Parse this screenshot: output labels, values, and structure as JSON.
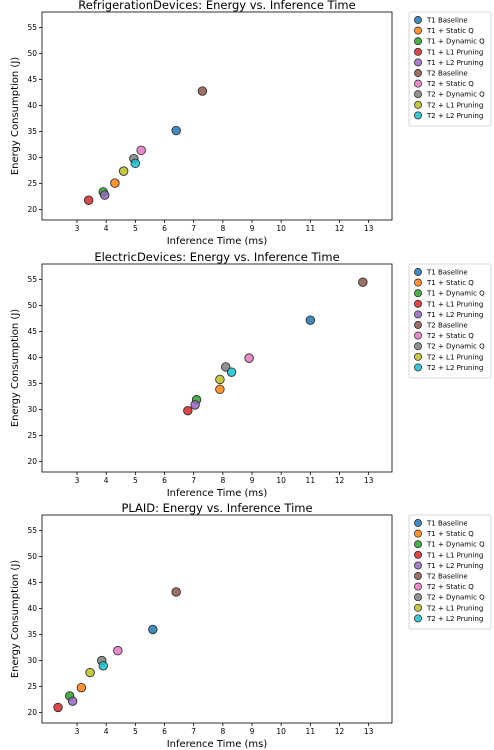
{
  "series_colors": {
    "T1 Baseline": "#1f77b4",
    "T1 + Static Q": "#ff7f0e",
    "T1 + Dynamic Q": "#2ca02c",
    "T1 + L1 Pruning": "#d62728",
    "T1 + L2 Pruning": "#9467bd",
    "T2 Baseline": "#8c564b",
    "T2 + Static Q": "#e377c2",
    "T2 + Dynamic Q": "#7f7f7f",
    "T2 + L1 Pruning": "#bcbd22",
    "T2 + L2 Pruning": "#17becf"
  },
  "chart_data": [
    {
      "type": "scatter",
      "title": "RefrigerationDevices: Energy vs. Inference Time",
      "xlabel": "Inference Time (ms)",
      "ylabel": "Energy Consumption (J)",
      "xlim": [
        1.8,
        13.8
      ],
      "ylim": [
        18,
        58
      ],
      "xticks": [
        3,
        4,
        5,
        6,
        7,
        8,
        9,
        10,
        11,
        12,
        13
      ],
      "yticks": [
        20,
        25,
        30,
        35,
        40,
        45,
        50,
        55
      ],
      "grid": false,
      "legend": "outside-right",
      "series": [
        {
          "name": "T1 Baseline",
          "x": 6.4,
          "y": 35.2
        },
        {
          "name": "T1 + Static Q",
          "x": 4.3,
          "y": 25.1
        },
        {
          "name": "T1 + Dynamic Q",
          "x": 3.9,
          "y": 23.4
        },
        {
          "name": "T1 + L1 Pruning",
          "x": 3.4,
          "y": 21.8
        },
        {
          "name": "T1 + L2 Pruning",
          "x": 3.95,
          "y": 22.8
        },
        {
          "name": "T2 Baseline",
          "x": 7.3,
          "y": 42.8
        },
        {
          "name": "T2 + Static Q",
          "x": 5.2,
          "y": 31.4
        },
        {
          "name": "T2 + Dynamic Q",
          "x": 4.95,
          "y": 29.8
        },
        {
          "name": "T2 + L1 Pruning",
          "x": 4.6,
          "y": 27.4
        },
        {
          "name": "T2 + L2 Pruning",
          "x": 5.0,
          "y": 28.9
        }
      ]
    },
    {
      "type": "scatter",
      "title": "ElectricDevices: Energy vs. Inference Time",
      "xlabel": "Inference Time (ms)",
      "ylabel": "Energy Consumption (J)",
      "xlim": [
        1.8,
        13.8
      ],
      "ylim": [
        18,
        58
      ],
      "xticks": [
        3,
        4,
        5,
        6,
        7,
        8,
        9,
        10,
        11,
        12,
        13
      ],
      "yticks": [
        20,
        25,
        30,
        35,
        40,
        45,
        50,
        55
      ],
      "grid": false,
      "legend": "outside-right",
      "series": [
        {
          "name": "T1 Baseline",
          "x": 11.0,
          "y": 47.2
        },
        {
          "name": "T1 + Static Q",
          "x": 7.9,
          "y": 33.9
        },
        {
          "name": "T1 + Dynamic Q",
          "x": 7.1,
          "y": 31.9
        },
        {
          "name": "T1 + L1 Pruning",
          "x": 6.8,
          "y": 29.8
        },
        {
          "name": "T1 + L2 Pruning",
          "x": 7.05,
          "y": 30.9
        },
        {
          "name": "T2 Baseline",
          "x": 12.8,
          "y": 54.5
        },
        {
          "name": "T2 + Static Q",
          "x": 8.9,
          "y": 39.9
        },
        {
          "name": "T2 + Dynamic Q",
          "x": 8.1,
          "y": 38.2
        },
        {
          "name": "T2 + L1 Pruning",
          "x": 7.9,
          "y": 35.8
        },
        {
          "name": "T2 + L2 Pruning",
          "x": 8.3,
          "y": 37.2
        }
      ]
    },
    {
      "type": "scatter",
      "title": "PLAID: Energy vs. Inference Time",
      "xlabel": "Inference Time (ms)",
      "ylabel": "Energy Consumption (J)",
      "xlim": [
        1.8,
        13.8
      ],
      "ylim": [
        18,
        58
      ],
      "xticks": [
        3,
        4,
        5,
        6,
        7,
        8,
        9,
        10,
        11,
        12,
        13
      ],
      "yticks": [
        20,
        25,
        30,
        35,
        40,
        45,
        50,
        55
      ],
      "grid": false,
      "legend": "outside-right",
      "series": [
        {
          "name": "T1 Baseline",
          "x": 5.6,
          "y": 36.0
        },
        {
          "name": "T1 + Static Q",
          "x": 3.15,
          "y": 24.8
        },
        {
          "name": "T1 + Dynamic Q",
          "x": 2.75,
          "y": 23.2
        },
        {
          "name": "T1 + L1 Pruning",
          "x": 2.35,
          "y": 21.0
        },
        {
          "name": "T1 + L2 Pruning",
          "x": 2.85,
          "y": 22.2
        },
        {
          "name": "T2 Baseline",
          "x": 6.4,
          "y": 43.2
        },
        {
          "name": "T2 + Static Q",
          "x": 4.4,
          "y": 31.9
        },
        {
          "name": "T2 + Dynamic Q",
          "x": 3.85,
          "y": 30.0
        },
        {
          "name": "T2 + L1 Pruning",
          "x": 3.45,
          "y": 27.7
        },
        {
          "name": "T2 + L2 Pruning",
          "x": 3.9,
          "y": 29.0
        }
      ]
    }
  ]
}
